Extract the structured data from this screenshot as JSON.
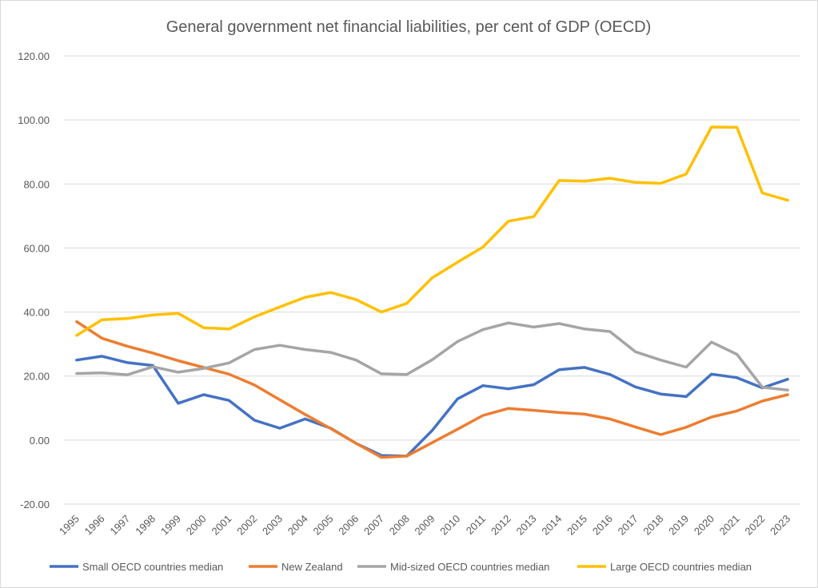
{
  "chart_data": {
    "type": "line",
    "title": "General government net financial liabilities, per cent of GDP (OECD)",
    "xlabel": "",
    "ylabel": "",
    "ylim": [
      -20,
      120
    ],
    "y_ticks": [
      "-20.00",
      "0.00",
      "20.00",
      "40.00",
      "60.00",
      "80.00",
      "100.00",
      "120.00"
    ],
    "grid": true,
    "legend_position": "bottom",
    "categories": [
      "1995",
      "1996",
      "1997",
      "1998",
      "1999",
      "2000",
      "2001",
      "2002",
      "2003",
      "2004",
      "2005",
      "2006",
      "2007",
      "2008",
      "2009",
      "2010",
      "2011",
      "2012",
      "2013",
      "2014",
      "2015",
      "2016",
      "2017",
      "2018",
      "2019",
      "2020",
      "2021",
      "2022",
      "2023"
    ],
    "series": [
      {
        "name": "Small OECD countries median",
        "color": "#4472c4",
        "values": [
          25.0,
          26.2,
          24.2,
          23.3,
          11.5,
          14.2,
          12.4,
          6.2,
          3.7,
          6.6,
          3.7,
          -1.0,
          -4.8,
          -5.0,
          3.0,
          12.9,
          17.0,
          16.0,
          17.3,
          22.0,
          22.7,
          20.5,
          16.6,
          14.4,
          13.6,
          20.6,
          19.5,
          16.3,
          19.0
        ]
      },
      {
        "name": "New Zealand",
        "color": "#ed7d31",
        "values": [
          37.0,
          31.8,
          29.3,
          27.2,
          24.8,
          22.7,
          20.6,
          17.2,
          12.6,
          8.0,
          3.6,
          -1.0,
          -5.4,
          -5.0,
          -0.8,
          3.4,
          7.7,
          9.9,
          9.3,
          8.6,
          8.1,
          6.6,
          4.1,
          1.7,
          4.0,
          7.2,
          9.1,
          12.2,
          14.2
        ]
      },
      {
        "name": "Mid-sized OECD countries median",
        "color": "#a5a5a5",
        "values": [
          20.8,
          21.0,
          20.4,
          22.9,
          21.2,
          22.4,
          24.1,
          28.3,
          29.6,
          28.3,
          27.4,
          25.0,
          20.7,
          20.5,
          25.1,
          30.8,
          34.5,
          36.6,
          35.3,
          36.4,
          34.7,
          33.9,
          27.6,
          25.0,
          22.8,
          30.6,
          26.8,
          16.5,
          15.6
        ]
      },
      {
        "name": "Large OECD countries median",
        "color": "#ffc000",
        "values": [
          32.7,
          37.6,
          38.0,
          39.1,
          39.6,
          35.1,
          34.7,
          38.5,
          41.6,
          44.6,
          46.1,
          43.9,
          40.0,
          42.7,
          50.7,
          55.6,
          60.3,
          68.4,
          69.8,
          81.1,
          80.9,
          81.8,
          80.5,
          80.2,
          83.1,
          97.8,
          97.7,
          77.2,
          74.9
        ]
      }
    ]
  }
}
